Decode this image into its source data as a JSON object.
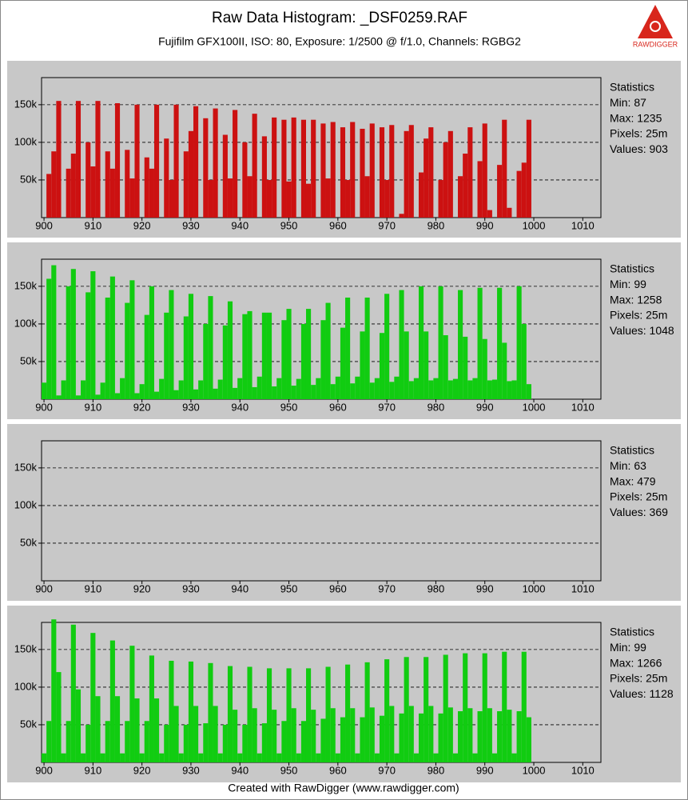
{
  "header": {
    "title": "Raw Data Histogram:  _DSF0259.RAF",
    "subtitle": "Fujifilm GFX100II, ISO: 80, Exposure: 1/2500 @ f/1.0, Channels: RGBG2",
    "logo": "RAWDIGGER"
  },
  "footer": "Created with RawDigger (www.rawdigger.com)",
  "chart_data": [
    {
      "type": "histogram",
      "color": "#cc1111",
      "grid": true,
      "xlim": [
        899.5,
        1013.7
      ],
      "ylim": [
        0,
        186000
      ],
      "xticks": [
        900,
        910,
        920,
        930,
        940,
        950,
        960,
        970,
        980,
        990,
        1000,
        1010
      ],
      "yticks": [
        {
          "value": 50000,
          "label": "50k"
        },
        {
          "value": 100000,
          "label": "100k"
        },
        {
          "value": 150000,
          "label": "150k"
        }
      ],
      "stats": [
        "Statistics",
        "Min: 87",
        "Max: 1235",
        "Pixels: 25m",
        "Values: 903"
      ],
      "x": [
        900,
        901,
        902,
        903,
        904,
        905,
        906,
        907,
        908,
        909,
        910,
        911,
        912,
        913,
        914,
        915,
        916,
        917,
        918,
        919,
        920,
        921,
        922,
        923,
        924,
        925,
        926,
        927,
        928,
        929,
        930,
        931,
        932,
        933,
        934,
        935,
        936,
        937,
        938,
        939,
        940,
        941,
        942,
        943,
        944,
        945,
        946,
        947,
        948,
        949,
        950,
        951,
        952,
        953,
        954,
        955,
        956,
        957,
        958,
        959,
        960,
        961,
        962,
        963,
        964,
        965,
        966,
        967,
        968,
        969,
        970,
        971,
        972,
        973,
        974,
        975,
        976,
        977,
        978,
        979,
        980,
        981,
        982,
        983,
        984,
        985,
        986,
        987,
        988,
        989,
        990,
        991,
        992,
        993,
        994,
        995,
        996,
        997,
        998,
        999
      ],
      "values": [
        0,
        58000,
        88000,
        155000,
        0,
        65000,
        85000,
        155000,
        0,
        100000,
        68000,
        155000,
        0,
        88000,
        65000,
        152000,
        0,
        90000,
        52000,
        150000,
        0,
        80000,
        65000,
        150000,
        0,
        105000,
        50000,
        150000,
        0,
        88000,
        115000,
        148000,
        0,
        132000,
        50000,
        145000,
        0,
        110000,
        52000,
        143000,
        0,
        100000,
        55000,
        138000,
        0,
        108000,
        50000,
        133000,
        0,
        130000,
        48000,
        133000,
        0,
        130000,
        45000,
        130000,
        0,
        125000,
        52000,
        127000,
        0,
        120000,
        50000,
        127000,
        0,
        118000,
        55000,
        125000,
        0,
        120000,
        50000,
        123000,
        0,
        5000,
        115000,
        123000,
        0,
        60000,
        105000,
        120000,
        0,
        50000,
        100000,
        115000,
        0,
        55000,
        85000,
        120000,
        0,
        75000,
        125000,
        10000,
        0,
        70000,
        130000,
        13000,
        0,
        62000,
        73000,
        130000
      ]
    },
    {
      "type": "histogram",
      "color": "#11cc11",
      "grid": true,
      "xlim": [
        899.5,
        1013.7
      ],
      "ylim": [
        0,
        186000
      ],
      "xticks": [
        900,
        910,
        920,
        930,
        940,
        950,
        960,
        970,
        980,
        990,
        1000,
        1010
      ],
      "yticks": [
        {
          "value": 50000,
          "label": "50k"
        },
        {
          "value": 100000,
          "label": "100k"
        },
        {
          "value": 150000,
          "label": "150k"
        }
      ],
      "stats": [
        "Statistics",
        "Min: 99",
        "Max: 1258",
        "Pixels: 25m",
        "Values: 1048"
      ],
      "x": [
        900,
        901,
        902,
        903,
        904,
        905,
        906,
        907,
        908,
        909,
        910,
        911,
        912,
        913,
        914,
        915,
        916,
        917,
        918,
        919,
        920,
        921,
        922,
        923,
        924,
        925,
        926,
        927,
        928,
        929,
        930,
        931,
        932,
        933,
        934,
        935,
        936,
        937,
        938,
        939,
        940,
        941,
        942,
        943,
        944,
        945,
        946,
        947,
        948,
        949,
        950,
        951,
        952,
        953,
        954,
        955,
        956,
        957,
        958,
        959,
        960,
        961,
        962,
        963,
        964,
        965,
        966,
        967,
        968,
        969,
        970,
        971,
        972,
        973,
        974,
        975,
        976,
        977,
        978,
        979,
        980,
        981,
        982,
        983,
        984,
        985,
        986,
        987,
        988,
        989,
        990,
        991,
        992,
        993,
        994,
        995,
        996,
        997,
        998,
        999
      ],
      "values": [
        22000,
        160000,
        178000,
        5000,
        25000,
        150000,
        173000,
        5000,
        25000,
        142000,
        170000,
        6000,
        22000,
        135000,
        163000,
        8000,
        28000,
        128000,
        158000,
        8000,
        20000,
        112000,
        150000,
        10000,
        27000,
        115000,
        145000,
        12000,
        25000,
        110000,
        140000,
        13000,
        25000,
        100000,
        137000,
        14000,
        26000,
        98000,
        130000,
        15000,
        28000,
        113000,
        117000,
        16000,
        30000,
        115000,
        115000,
        17000,
        28000,
        105000,
        120000,
        18000,
        27000,
        100000,
        120000,
        19000,
        28000,
        105000,
        128000,
        20000,
        30000,
        95000,
        135000,
        21000,
        30000,
        90000,
        135000,
        22000,
        28000,
        88000,
        140000,
        23000,
        30000,
        145000,
        90000,
        24000,
        28000,
        150000,
        90000,
        25000,
        28000,
        150000,
        85000,
        25000,
        27000,
        145000,
        83000,
        25000,
        28000,
        148000,
        80000,
        25000,
        26000,
        148000,
        75000,
        24000,
        25000,
        150000,
        100000,
        20000
      ]
    },
    {
      "type": "histogram",
      "grid": true,
      "xlim": [
        899.5,
        1013.7
      ],
      "ylim": [
        0,
        186000
      ],
      "xticks": [
        900,
        910,
        920,
        930,
        940,
        950,
        960,
        970,
        980,
        990,
        1000,
        1010
      ],
      "yticks": [
        {
          "value": 50000,
          "label": "50k"
        },
        {
          "value": 100000,
          "label": "100k"
        },
        {
          "value": 150000,
          "label": "150k"
        }
      ],
      "stats": [
        "Statistics",
        "Min: 63",
        "Max: 479",
        "Pixels: 25m",
        "Values: 369"
      ],
      "x": [],
      "values": []
    },
    {
      "type": "histogram",
      "color": "#11cc11",
      "grid": true,
      "xlim": [
        899.5,
        1013.7
      ],
      "ylim": [
        0,
        186000
      ],
      "xticks": [
        900,
        910,
        920,
        930,
        940,
        950,
        960,
        970,
        980,
        990,
        1000,
        1010
      ],
      "yticks": [
        {
          "value": 50000,
          "label": "50k"
        },
        {
          "value": 100000,
          "label": "100k"
        },
        {
          "value": 150000,
          "label": "150k"
        }
      ],
      "stats": [
        "Statistics",
        "Min: 99",
        "Max: 1266",
        "Pixels: 25m",
        "Values: 1128"
      ],
      "x": [
        900,
        901,
        902,
        903,
        904,
        905,
        906,
        907,
        908,
        909,
        910,
        911,
        912,
        913,
        914,
        915,
        916,
        917,
        918,
        919,
        920,
        921,
        922,
        923,
        924,
        925,
        926,
        927,
        928,
        929,
        930,
        931,
        932,
        933,
        934,
        935,
        936,
        937,
        938,
        939,
        940,
        941,
        942,
        943,
        944,
        945,
        946,
        947,
        948,
        949,
        950,
        951,
        952,
        953,
        954,
        955,
        956,
        957,
        958,
        959,
        960,
        961,
        962,
        963,
        964,
        965,
        966,
        967,
        968,
        969,
        970,
        971,
        972,
        973,
        974,
        975,
        976,
        977,
        978,
        979,
        980,
        981,
        982,
        983,
        984,
        985,
        986,
        987,
        988,
        989,
        990,
        991,
        992,
        993,
        994,
        995,
        996,
        997,
        998,
        999
      ],
      "values": [
        12000,
        55000,
        190000,
        120000,
        12000,
        55000,
        183000,
        97000,
        12000,
        50000,
        172000,
        88000,
        12000,
        55000,
        162000,
        88000,
        12000,
        55000,
        155000,
        85000,
        12000,
        55000,
        142000,
        85000,
        12000,
        50000,
        135000,
        75000,
        12000,
        50000,
        134000,
        75000,
        12000,
        52000,
        132000,
        75000,
        12000,
        50000,
        128000,
        70000,
        12000,
        50000,
        127000,
        72000,
        12000,
        52000,
        125000,
        70000,
        12000,
        55000,
        125000,
        72000,
        12000,
        55000,
        125000,
        70000,
        12000,
        58000,
        127000,
        72000,
        12000,
        60000,
        130000,
        72000,
        12000,
        60000,
        133000,
        73000,
        12000,
        62000,
        137000,
        75000,
        12000,
        65000,
        140000,
        75000,
        12000,
        65000,
        140000,
        75000,
        12000,
        65000,
        143000,
        73000,
        12000,
        68000,
        145000,
        72000,
        12000,
        68000,
        145000,
        72000,
        12000,
        68000,
        147000,
        70000,
        12000,
        68000,
        147000,
        60000
      ]
    }
  ]
}
